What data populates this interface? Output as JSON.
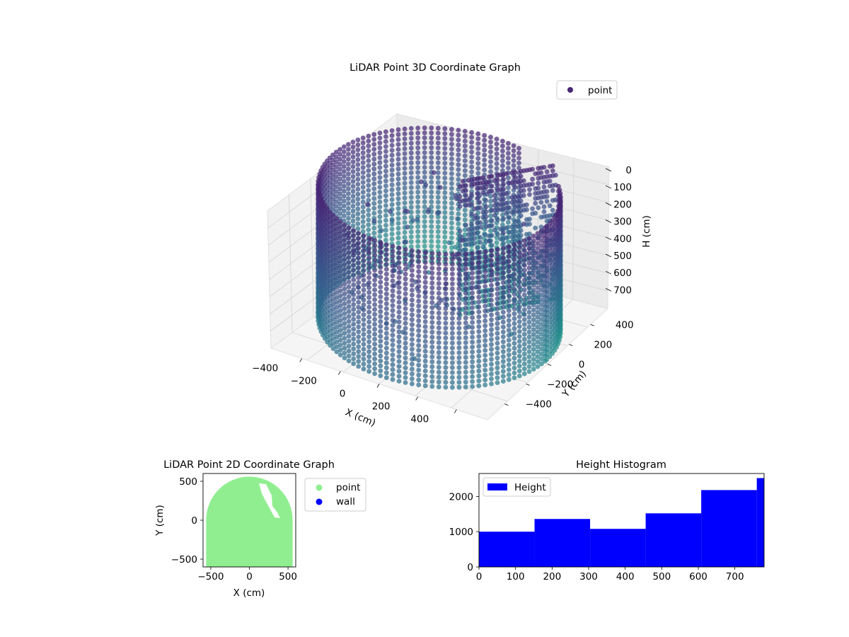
{
  "chart_data": [
    {
      "type": "scatter",
      "projection": "3d",
      "title": "LiDAR Point 3D Coordinate Graph",
      "xlabel": "X (cm)",
      "ylabel": "Y (cm)",
      "zlabel": "H (cm)",
      "xticks": [
        "−400",
        "−200",
        "0",
        "200",
        "400"
      ],
      "yticks": [
        "−400",
        "−200",
        "0",
        "200",
        "400"
      ],
      "zticks": [
        "0",
        "100",
        "200",
        "300",
        "400",
        "500",
        "600",
        "700"
      ],
      "xlim": [
        -560,
        560
      ],
      "ylim": [
        -560,
        560
      ],
      "zlim": [
        0,
        780
      ],
      "z_inverted": true,
      "colormap": "viridis",
      "legend": [
        {
          "label": "point",
          "color": "#482777"
        }
      ],
      "legend_position": "upper-right",
      "grid": true,
      "series": [
        {
          "name": "point",
          "shape": "cylindrical wall, radius ~560 cm, open toward +Y, with an inner partition",
          "samples": [
            {
              "x": -440,
              "y": -260,
              "h": 0
            },
            {
              "x": -440,
              "y": -260,
              "h": 390
            },
            {
              "x": -440,
              "y": -260,
              "h": 780
            },
            {
              "x": -300,
              "y": -470,
              "h": 0
            },
            {
              "x": -300,
              "y": -470,
              "h": 390
            },
            {
              "x": -300,
              "y": -470,
              "h": 780
            },
            {
              "x": -100,
              "y": -550,
              "h": 0
            },
            {
              "x": -100,
              "y": -550,
              "h": 390
            },
            {
              "x": -100,
              "y": -550,
              "h": 780
            },
            {
              "x": 100,
              "y": -550,
              "h": 0
            },
            {
              "x": 100,
              "y": -550,
              "h": 390
            },
            {
              "x": 100,
              "y": -550,
              "h": 780
            },
            {
              "x": 300,
              "y": -470,
              "h": 0
            },
            {
              "x": 300,
              "y": -470,
              "h": 390
            },
            {
              "x": 300,
              "y": -470,
              "h": 780
            },
            {
              "x": 440,
              "y": -260,
              "h": 0
            },
            {
              "x": 440,
              "y": -260,
              "h": 390
            },
            {
              "x": 440,
              "y": -260,
              "h": 780
            },
            {
              "x": 530,
              "y": 0,
              "h": 0
            },
            {
              "x": 530,
              "y": 0,
              "h": 390
            },
            {
              "x": 530,
              "y": 0,
              "h": 780
            },
            {
              "x": -530,
              "y": 80,
              "h": 0
            },
            {
              "x": -530,
              "y": 80,
              "h": 390
            },
            {
              "x": -530,
              "y": 80,
              "h": 780
            },
            {
              "x": 150,
              "y": 250,
              "h": 0
            },
            {
              "x": 150,
              "y": 250,
              "h": 390
            },
            {
              "x": 150,
              "y": 250,
              "h": 780
            },
            {
              "x": 380,
              "y": 520,
              "h": 560
            },
            {
              "x": 100,
              "y": 560,
              "h": 420
            }
          ]
        }
      ]
    },
    {
      "type": "scatter",
      "title": "LiDAR Point 2D Coordinate Graph",
      "xlabel": "X (cm)",
      "ylabel": "Y (cm)",
      "xticks": [
        -500,
        0,
        500
      ],
      "yticks": [
        -500,
        0,
        500
      ],
      "xlim": [
        -600,
        600
      ],
      "ylim": [
        -600,
        600
      ],
      "legend": [
        {
          "label": "point",
          "color": "#90ee90"
        },
        {
          "label": "wall",
          "color": "#0000ff"
        }
      ],
      "legend_position": "outside-right",
      "grid": false,
      "series": [
        {
          "name": "point",
          "color": "#90ee90",
          "region": "filled disc radius ~560 cm clipped to y ≤ 600, with a small cut-out near (180 cm, 400 cm)"
        }
      ]
    },
    {
      "type": "bar",
      "subtype": "histogram",
      "title": "Height Histogram",
      "xlabel": "",
      "ylabel": "",
      "bin_edges": [
        0,
        152,
        304,
        456,
        608,
        760,
        780
      ],
      "values": [
        1000,
        1360,
        1080,
        1520,
        2180,
        2520
      ],
      "xticks": [
        0,
        100,
        200,
        300,
        400,
        500,
        600,
        700
      ],
      "yticks": [
        0,
        1000,
        2000
      ],
      "xlim": [
        0,
        780
      ],
      "ylim": [
        0,
        2650
      ],
      "color": "#0000ff",
      "legend": [
        {
          "label": "Height",
          "color": "#0000ff"
        }
      ],
      "legend_position": "upper-left",
      "grid": false
    }
  ]
}
